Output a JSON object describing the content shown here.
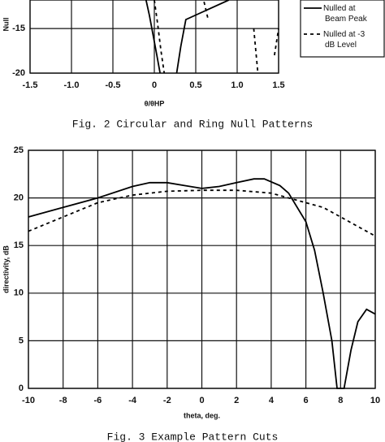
{
  "chart_data": [
    {
      "type": "line",
      "caption": "Fig. 2 Circular and Ring Null Patterns",
      "xlabel": "θ/θHP",
      "ylabel": "Null",
      "xlim": [
        -1.5,
        1.5
      ],
      "ylim": [
        -20,
        -11.8
      ],
      "grid": true,
      "legend": "upper right",
      "xticks": [
        -1.5,
        {
          "value": -1,
          "label": "-1.0"
        },
        -0.5,
        0,
        0.5,
        {
          "value": 1,
          "label": "1.0"
        },
        1.5
      ],
      "yticks": [
        -15,
        -20
      ],
      "series": [
        {
          "name": "Nulled at Beam Peak",
          "color": "#000000",
          "style": "solid",
          "x": [
            -0.1,
            -0.06,
            -0.02,
            0.03,
            0.07,
            0.22,
            0.27,
            0.32,
            0.38,
            0.9,
            0.95,
            0.99
          ],
          "values": [
            -11.8,
            -13.5,
            -15.5,
            -18,
            -20,
            null,
            -20,
            -17,
            -14,
            -11.8,
            null,
            -11.8
          ]
        },
        {
          "name": "Nulled at -3 dB Level",
          "color": "#000000",
          "style": "dashed",
          "x": [
            0.0,
            0.04,
            0.08,
            0.12,
            0.55,
            0.6,
            0.65,
            1.15,
            1.2,
            1.25,
            1.4,
            1.45,
            1.5
          ],
          "values": [
            -11.8,
            -14.5,
            -17.5,
            -20,
            null,
            -12,
            -14,
            null,
            -15,
            -20,
            null,
            -18,
            -15
          ]
        }
      ]
    },
    {
      "type": "line",
      "caption": "Fig. 3 Example Pattern Cuts",
      "xlabel": "theta, deg.",
      "ylabel": "directivity, dB",
      "xlim": [
        -10,
        10
      ],
      "ylim": [
        0,
        25
      ],
      "grid": true,
      "xticks": [
        -10,
        -8,
        -6,
        -4,
        -2,
        0,
        2,
        4,
        6,
        8,
        10
      ],
      "yticks": [
        0,
        5,
        10,
        15,
        20,
        25
      ],
      "series": [
        {
          "color": "#000000",
          "style": "solid",
          "x": [
            -10,
            -8,
            -6,
            -4,
            -3,
            -2,
            -1,
            0,
            1,
            2,
            3,
            3.6,
            4.5,
            5,
            6,
            6.5,
            7,
            7.5,
            7.8,
            8.2,
            8.6,
            9,
            9.5,
            10
          ],
          "values": [
            18,
            19,
            20,
            21.2,
            21.6,
            21.6,
            21.3,
            21,
            21.2,
            21.6,
            22,
            22,
            21.3,
            20.5,
            17.5,
            14.5,
            10,
            5,
            0,
            0,
            4,
            7,
            8.3,
            7.8
          ]
        },
        {
          "color": "#000000",
          "style": "dashed",
          "x": [
            -10,
            -8,
            -6,
            -4,
            -2,
            0,
            2,
            4,
            5,
            6,
            7,
            8,
            9,
            10
          ],
          "values": [
            16.5,
            18,
            19.5,
            20.3,
            20.7,
            20.8,
            20.8,
            20.5,
            20,
            19.5,
            19,
            18,
            17,
            16
          ]
        }
      ]
    }
  ]
}
